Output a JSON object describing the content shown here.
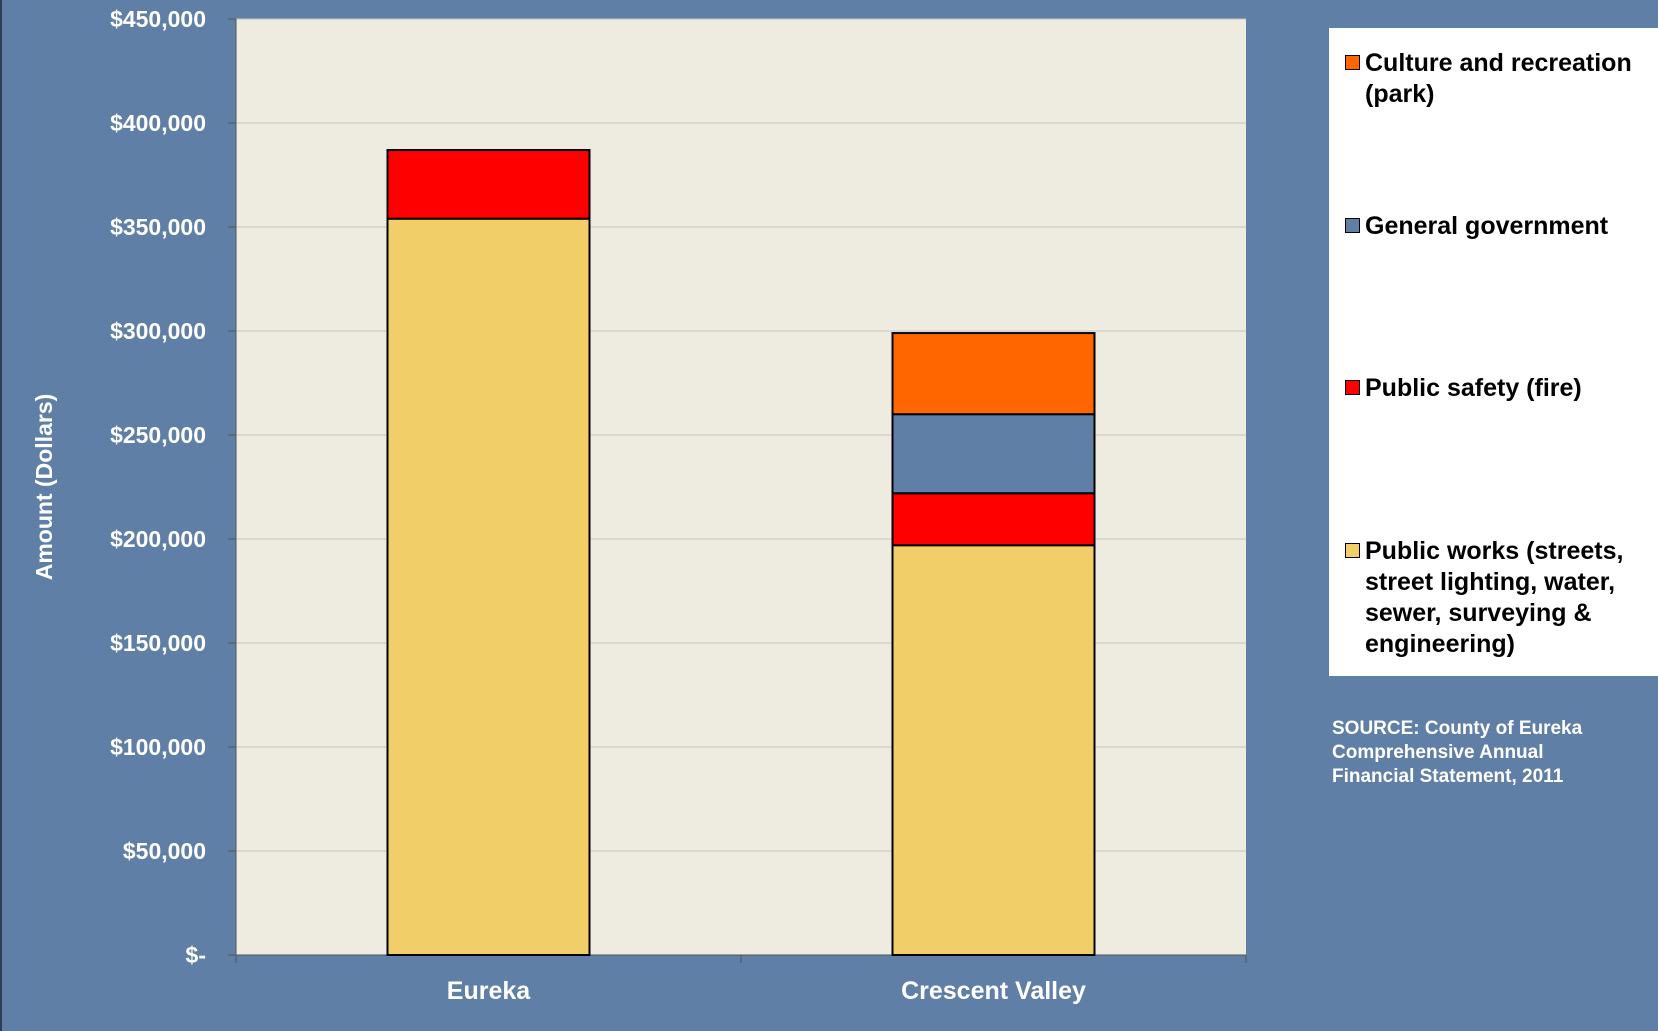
{
  "chart_data": {
    "type": "bar",
    "stacked": true,
    "categories": [
      "Eureka",
      "Crescent Valley"
    ],
    "series": [
      {
        "name": "Public works (streets, street lighting, water, sewer, surveying & engineering)",
        "values": [
          354000,
          197000
        ],
        "color": "#f2ce68"
      },
      {
        "name": "Public safety (fire)",
        "values": [
          33000,
          25000
        ],
        "color": "#ff0000"
      },
      {
        "name": "General government",
        "values": [
          0,
          38000
        ],
        "color": "#5f7fa6"
      },
      {
        "name": "Culture and recreation (park)",
        "values": [
          0,
          39000
        ],
        "color": "#ff6600"
      }
    ],
    "ylabel": "Amount (Dollars)",
    "ylim": [
      0,
      450000
    ],
    "yticks": [
      0,
      50000,
      100000,
      150000,
      200000,
      250000,
      300000,
      350000,
      400000,
      450000
    ],
    "ytick_labels": [
      "$-",
      "$50,000",
      "$100,000",
      "$150,000",
      "$200,000",
      "$250,000",
      "$300,000",
      "$350,000",
      "$400,000",
      "$450,000"
    ],
    "grid": true,
    "legend_position": "right",
    "legend_order": [
      "Culture and recreation (park)",
      "General government",
      "Public safety (fire)",
      "Public works (streets, street lighting, water, sewer, surveying & engineering)"
    ],
    "plot_background": "#eeebe0"
  },
  "source_note": "SOURCE: County of Eureka Comprehensive Annual Financial Statement, 2011"
}
